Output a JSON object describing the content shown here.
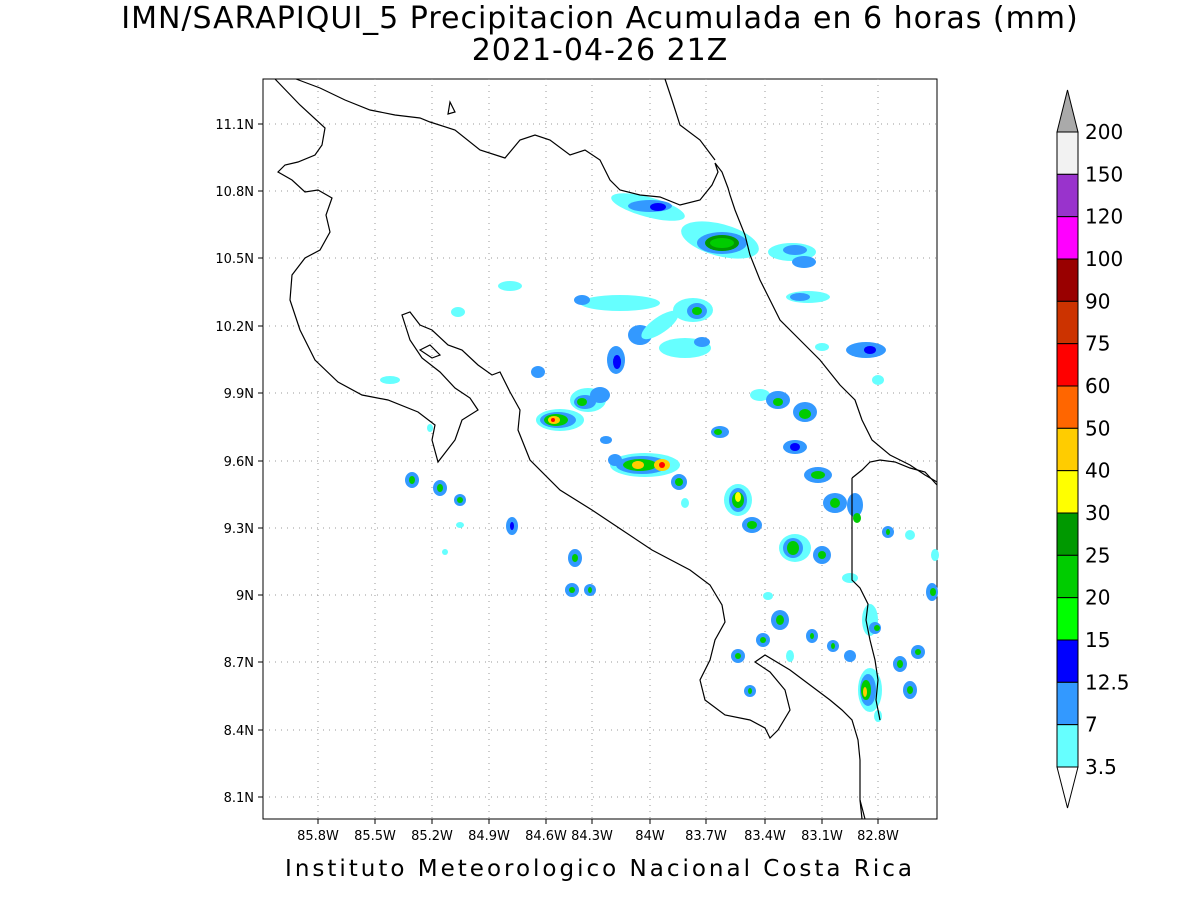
{
  "title": {
    "line1": "IMN/SARAPIQUI_5 Precipitacion Acumulada en 6 horas (mm)",
    "line2": "2021-04-26 21Z"
  },
  "footer": "Instituto Meteorologico Nacional Costa Rica",
  "axes": {
    "lon_labels": [
      "85.8W",
      "85.5W",
      "85.2W",
      "84.9W",
      "84.6W",
      "84.3W",
      "84W",
      "83.7W",
      "83.4W",
      "83.1W",
      "82.8W"
    ],
    "lat_labels": [
      "11.1N",
      "10.8N",
      "10.5N",
      "10.2N",
      "9.9N",
      "9.6N",
      "9.3N",
      "9N",
      "8.7N",
      "8.4N",
      "8.1N"
    ],
    "grid": "dotted"
  },
  "colorbar": {
    "labels": [
      "200",
      "150",
      "120",
      "100",
      "90",
      "75",
      "60",
      "50",
      "40",
      "30",
      "25",
      "20",
      "15",
      "12.5",
      "7",
      "3.5"
    ],
    "colors": [
      "#f2f2f2",
      "#9933cc",
      "#ff00ff",
      "#990000",
      "#cc3300",
      "#ff0000",
      "#ff6600",
      "#ffcc00",
      "#ffff00",
      "#009900",
      "#00cc00",
      "#00ff00",
      "#0000ff",
      "#3399ff",
      "#66ffff"
    ],
    "top_arrow_color": "#aaaaaa",
    "bottom_arrow_color": "#ffffff"
  }
}
